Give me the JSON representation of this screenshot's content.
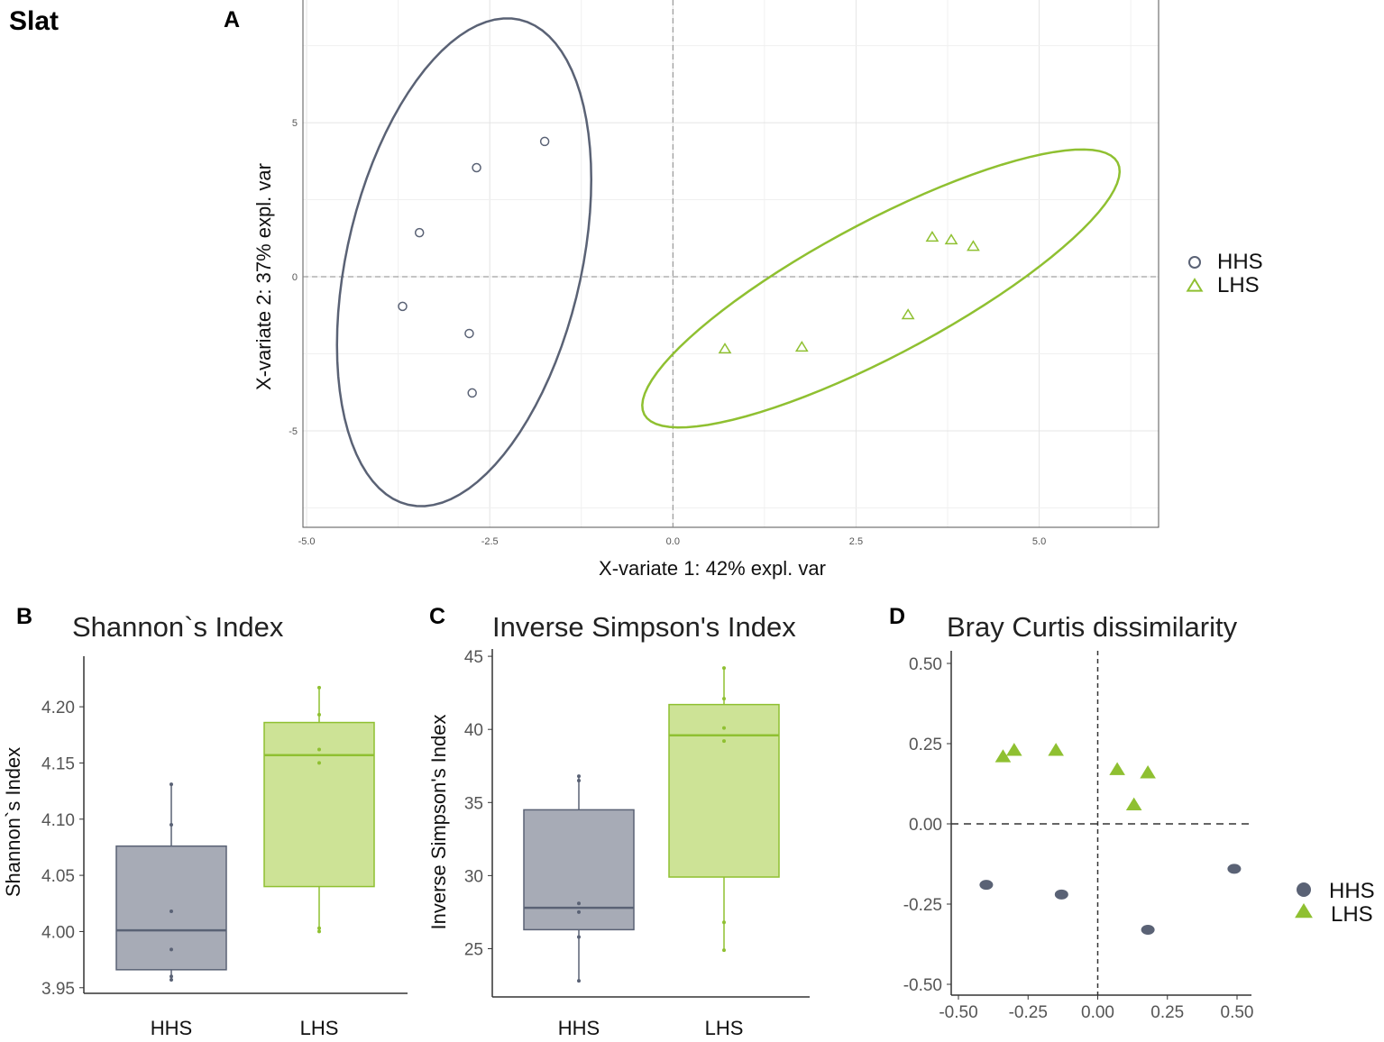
{
  "colors": {
    "HHS": "#5a6275",
    "LHS": "#8fc031",
    "HHS_fill": "#a7abb6",
    "LHS_fill": "#cde396"
  },
  "figure_label": "Slat",
  "chart_data": [
    {
      "panel": "A",
      "type": "scatter",
      "title": "",
      "xlabel": "X-variate 1: 42% expl. var",
      "ylabel": "X-variate 2: 37% expl. var",
      "xlim": [
        -5.05,
        6.63
      ],
      "ylim": [
        -8.13,
        8.98
      ],
      "xticks": [
        -5.0,
        -2.5,
        0.0,
        2.5,
        5.0
      ],
      "xtick_labels": [
        "-5.0",
        "-2.5",
        "0.0",
        "2.5",
        "5.0"
      ],
      "yticks": [
        -5,
        0,
        5
      ],
      "ytick_labels": [
        "-5",
        "0",
        "5"
      ],
      "grid": true,
      "legend": "right",
      "series": [
        {
          "name": "HHS",
          "marker": "open-circle",
          "points": [
            [
              -1.75,
              4.39
            ],
            [
              -2.68,
              3.54
            ],
            [
              -3.46,
              1.43
            ],
            [
              -3.69,
              -0.96
            ],
            [
              -2.78,
              -1.84
            ],
            [
              -2.74,
              -3.77
            ]
          ],
          "ellipse": {
            "center": [
              -2.85,
              0.47
            ],
            "major": [
              0.76,
              7.87
            ],
            "minor": [
              1.56,
              -0.85
            ]
          }
        },
        {
          "name": "LHS",
          "marker": "open-triangle",
          "points": [
            [
              3.54,
              1.29
            ],
            [
              3.8,
              1.2
            ],
            [
              4.1,
              0.99
            ],
            [
              3.21,
              -1.23
            ],
            [
              1.76,
              -2.28
            ],
            [
              0.71,
              -2.34
            ]
          ],
          "ellipse": {
            "center": [
              2.84,
              -0.38
            ],
            "major": [
              3.23,
              4.09
            ],
            "minor": [
              0.43,
              -1.9
            ]
          }
        }
      ]
    },
    {
      "panel": "B",
      "type": "box",
      "title": "Shannon`s Index",
      "ylabel": "Shannon`s Index",
      "xlabel": "",
      "categories": [
        "HHS",
        "LHS"
      ],
      "ylim": [
        3.945,
        4.245
      ],
      "yticks": [
        3.95,
        4.0,
        4.05,
        4.1,
        4.15,
        4.2
      ],
      "ytick_labels": [
        "3.95",
        "4.00",
        "4.05",
        "4.10",
        "4.15",
        "4.20"
      ],
      "boxes": [
        {
          "name": "HHS",
          "min": 3.957,
          "q1": 3.966,
          "median": 4.001,
          "q3": 4.076,
          "max": 4.131,
          "points": [
            4.131,
            4.095,
            4.018,
            3.984,
            3.96,
            3.957
          ]
        },
        {
          "name": "LHS",
          "min": 4.0,
          "q1": 4.04,
          "median": 4.157,
          "q3": 4.186,
          "max": 4.217,
          "points": [
            4.217,
            4.193,
            4.162,
            4.15,
            4.003,
            4.0
          ]
        }
      ]
    },
    {
      "panel": "C",
      "type": "box",
      "title": "Inverse Simpson's Index",
      "ylabel": "Inverse Simpson's Index",
      "xlabel": "",
      "categories": [
        "HHS",
        "LHS"
      ],
      "ylim": [
        21.7,
        45.5
      ],
      "yticks": [
        25,
        30,
        35,
        40,
        45
      ],
      "ytick_labels": [
        "25",
        "30",
        "35",
        "40",
        "45"
      ],
      "boxes": [
        {
          "name": "HHS",
          "min": 22.8,
          "q1": 26.3,
          "median": 27.8,
          "q3": 34.5,
          "max": 36.8,
          "points": [
            36.8,
            36.5,
            28.1,
            27.5,
            25.8,
            22.8
          ]
        },
        {
          "name": "LHS",
          "min": 24.9,
          "q1": 29.9,
          "median": 39.6,
          "q3": 41.7,
          "max": 44.2,
          "points": [
            44.2,
            42.1,
            40.1,
            39.2,
            26.8,
            24.9
          ]
        }
      ]
    },
    {
      "panel": "D",
      "type": "scatter",
      "title": "Bray Curtis dissimilarity",
      "xlabel": "",
      "ylabel": "",
      "xlim": [
        -0.53,
        0.54
      ],
      "ylim": [
        -0.53,
        0.54
      ],
      "xticks": [
        -0.5,
        -0.25,
        0,
        0.25,
        0.5
      ],
      "xtick_labels": [
        "-0.50",
        "-0.25",
        "0.00",
        "0.25",
        "0.50"
      ],
      "yticks": [
        -0.5,
        -0.25,
        0,
        0.25,
        0.5
      ],
      "ytick_labels": [
        "-0.50",
        "-0.25",
        "0.00",
        "0.25",
        "0.50"
      ],
      "legend": "right",
      "series": [
        {
          "name": "HHS",
          "marker": "filled-circle",
          "points": [
            [
              -0.4,
              -0.19
            ],
            [
              -0.13,
              -0.22
            ],
            [
              0.18,
              -0.33
            ],
            [
              0.49,
              -0.14
            ]
          ]
        },
        {
          "name": "LHS",
          "marker": "filled-triangle",
          "points": [
            [
              -0.34,
              0.21
            ],
            [
              -0.3,
              0.23
            ],
            [
              -0.15,
              0.23
            ],
            [
              0.07,
              0.17
            ],
            [
              0.18,
              0.16
            ],
            [
              0.13,
              0.06
            ]
          ]
        }
      ]
    }
  ]
}
